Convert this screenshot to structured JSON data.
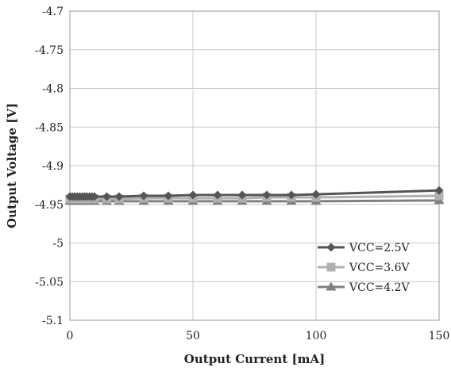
{
  "chart_data": {
    "type": "line",
    "title": "",
    "xlabel": "Output Current [mA]",
    "ylabel": "Output Voltage [V]",
    "xlim": [
      0,
      150
    ],
    "ylim": [
      -5.1,
      -4.7
    ],
    "x_ticks": [
      0,
      50,
      100,
      150
    ],
    "x_tick_labels": [
      "0",
      "50",
      "100",
      "150"
    ],
    "y_ticks": [
      -4.7,
      -4.75,
      -4.8,
      -4.85,
      -4.9,
      -4.95,
      -5,
      -5.05,
      -5.1
    ],
    "y_tick_labels": [
      "-4.7",
      "-4.75",
      "-4.8",
      "-4.85",
      "-4.9",
      "-4.95",
      "-5",
      "-5.05",
      "-5.1"
    ],
    "grid": true,
    "legend_position": "bottom-right",
    "x": [
      0,
      1,
      2,
      3,
      4,
      5,
      6,
      7,
      8,
      9,
      10,
      15,
      20,
      30,
      40,
      50,
      60,
      70,
      80,
      90,
      100,
      150
    ],
    "series": [
      {
        "name": "VCC=2.5V",
        "marker": "diamond",
        "color": "#555555",
        "values": [
          -4.94,
          -4.94,
          -4.94,
          -4.94,
          -4.94,
          -4.94,
          -4.94,
          -4.94,
          -4.94,
          -4.94,
          -4.94,
          -4.94,
          -4.94,
          -4.939,
          -4.939,
          -4.938,
          -4.938,
          -4.938,
          -4.938,
          -4.938,
          -4.937,
          -4.932
        ]
      },
      {
        "name": "VCC=3.6V",
        "marker": "square",
        "color": "#b0b0b0",
        "values": [
          -4.943,
          -4.943,
          -4.943,
          -4.943,
          -4.943,
          -4.943,
          -4.943,
          -4.943,
          -4.943,
          -4.943,
          -4.943,
          -4.943,
          -4.943,
          -4.942,
          -4.942,
          -4.942,
          -4.942,
          -4.942,
          -4.941,
          -4.941,
          -4.941,
          -4.939
        ]
      },
      {
        "name": "VCC=4.2V",
        "marker": "triangle",
        "color": "#808080",
        "values": [
          -4.946,
          -4.946,
          -4.946,
          -4.946,
          -4.946,
          -4.946,
          -4.946,
          -4.946,
          -4.946,
          -4.946,
          -4.946,
          -4.946,
          -4.946,
          -4.946,
          -4.946,
          -4.946,
          -4.946,
          -4.946,
          -4.946,
          -4.946,
          -4.946,
          -4.945
        ]
      }
    ]
  }
}
